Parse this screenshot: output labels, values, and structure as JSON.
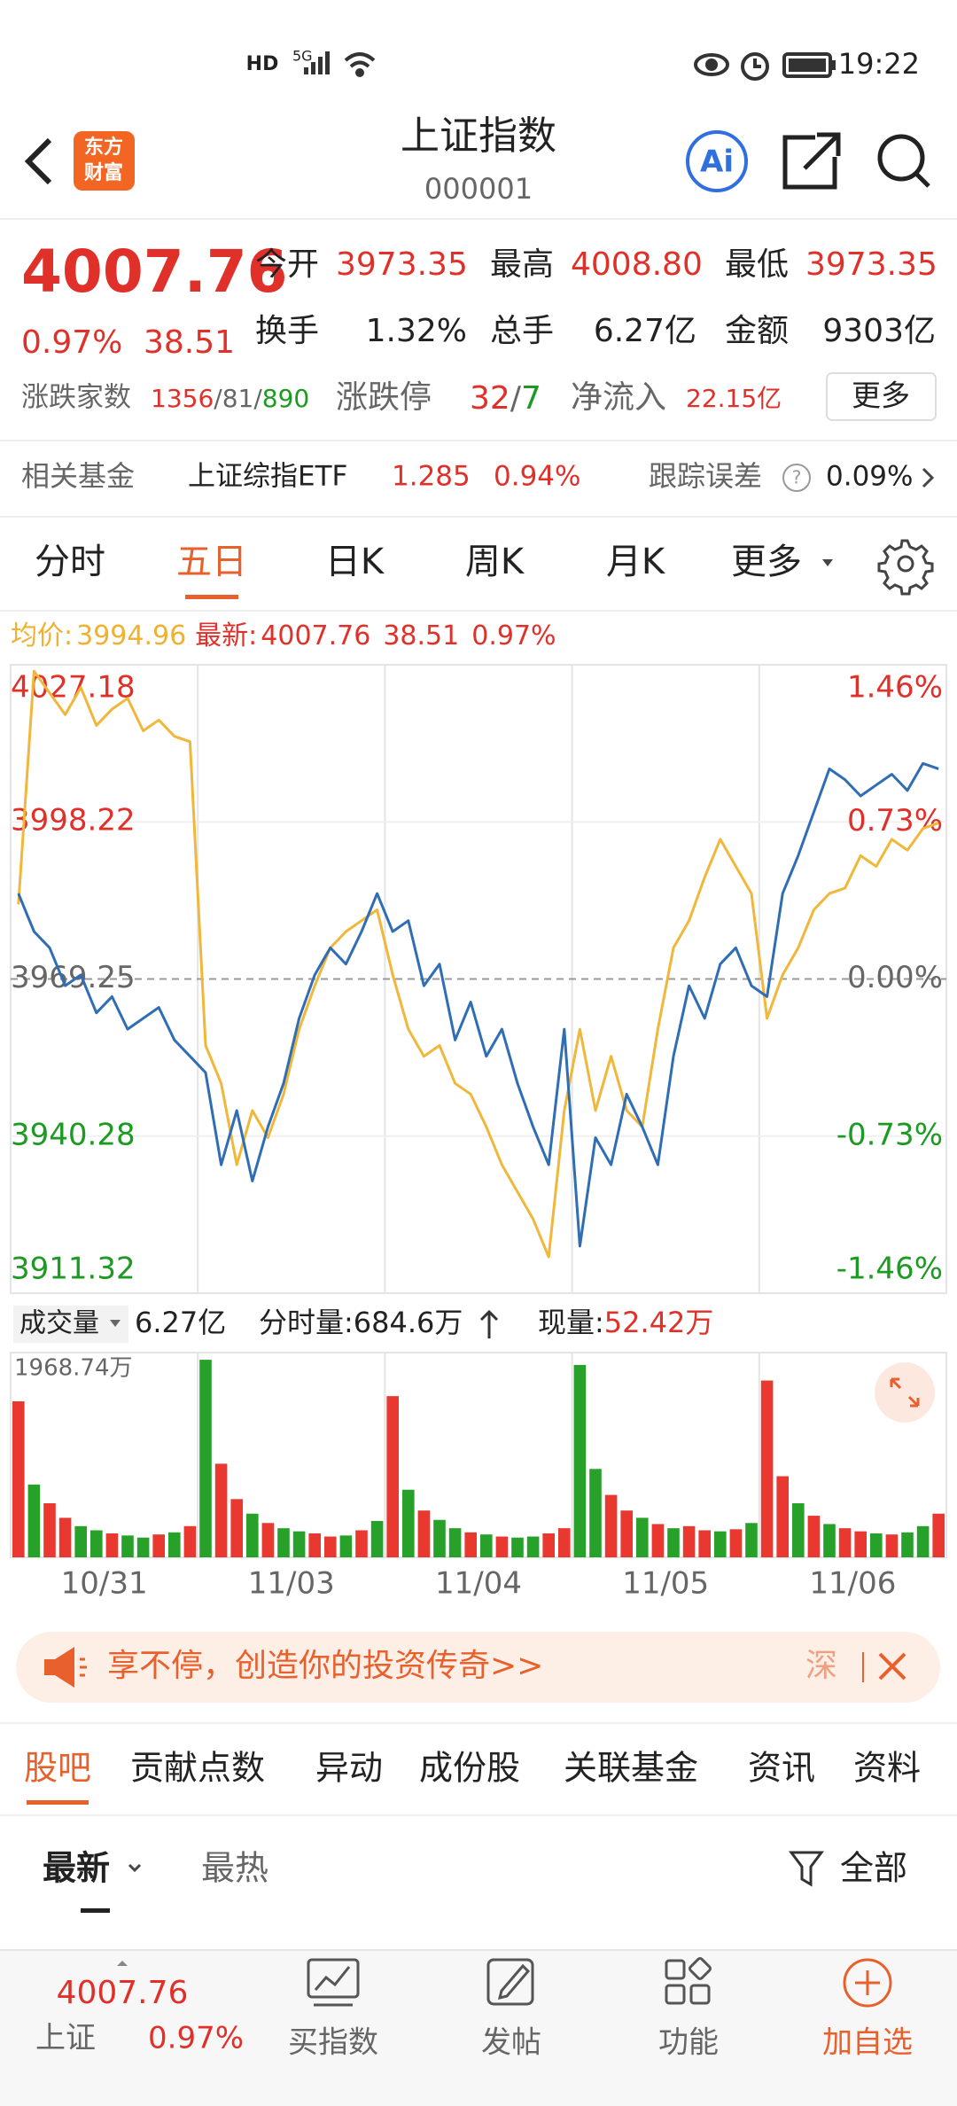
{
  "status_bar": {
    "hd": "HD",
    "net": "5G",
    "time": "19:22"
  },
  "header": {
    "logo": [
      "东方",
      "财富"
    ],
    "title": "上证指数",
    "code": "000001",
    "ai": "Ai"
  },
  "quote": {
    "price": "4007.76",
    "change_pct": "0.97%",
    "change": "38.51",
    "stats": [
      {
        "label": "今开",
        "value": "3973.35"
      },
      {
        "label": "最高",
        "value": "4008.80"
      },
      {
        "label": "最低",
        "value": "3973.35"
      },
      {
        "label": "换手",
        "value": "1.32%"
      },
      {
        "label": "总手",
        "value": "6.27亿"
      },
      {
        "label": "金额",
        "value": "9303亿"
      }
    ],
    "breadth": {
      "label": "涨跌家数",
      "up": "1356",
      "sep": "/",
      "flat": "81",
      "down": "890"
    },
    "limit": {
      "label": "涨跌停",
      "up": "32",
      "sep": "/",
      "down": "7"
    },
    "flow": {
      "label": "净流入",
      "value": "22.15亿"
    },
    "more": "更多"
  },
  "fund": {
    "label": "相关基金",
    "name": "上证综指ETF",
    "price": "1.285",
    "pct": "0.94%",
    "track_label": "跟踪误差",
    "help": "?",
    "track": "0.09%"
  },
  "period_tabs": {
    "items": [
      "分时",
      "五日",
      "日K",
      "周K",
      "月K",
      "更多"
    ],
    "active": 1
  },
  "legend": {
    "avg_label": "均价:",
    "avg": "3994.96",
    "last_label": "最新:",
    "last": "4007.76",
    "change": "38.51",
    "pct": "0.97%"
  },
  "volume_header": {
    "label": "成交量",
    "total": "6.27亿",
    "tick_label": "分时量:684.6万",
    "now_label": "现量:",
    "now": "52.42万"
  },
  "chart_data": [
    {
      "type": "line",
      "days": [
        "10/31",
        "11/03",
        "11/04",
        "11/05",
        "11/06"
      ],
      "ylim": [
        3911.32,
        4027.18
      ],
      "yticks": [
        4027.18,
        3998.22,
        3969.25,
        3940.28,
        3911.32
      ],
      "y2lim": [
        -1.46,
        1.46
      ],
      "y2ticks": [
        {
          "value": 1.46,
          "label": "1.46%"
        },
        {
          "value": 0.73,
          "label": "0.73%"
        },
        {
          "value": 0.0,
          "label": "0.00%"
        },
        {
          "value": -0.73,
          "label": "-0.73%"
        },
        {
          "value": -1.46,
          "label": "-1.46%"
        }
      ],
      "grid": true,
      "series": [
        {
          "name": "最新",
          "color": "#2f6db5",
          "values": [
            3985,
            3978,
            3975,
            3968,
            3970,
            3963,
            3966,
            3960,
            3962,
            3964,
            3958,
            3955,
            3952,
            3935,
            3945,
            3932,
            3942,
            3950,
            3962,
            3970,
            3975,
            3972,
            3978,
            3985,
            3978,
            3980,
            3968,
            3972,
            3958,
            3965,
            3955,
            3960,
            3950,
            3942,
            3935,
            3960,
            3920,
            3940,
            3935,
            3948,
            3942,
            3935,
            3955,
            3968,
            3962,
            3972,
            3975,
            3968,
            3966,
            3985,
            3992,
            4000,
            4008,
            4006,
            4003,
            4005,
            4007,
            4004,
            4009,
            4008
          ]
        },
        {
          "name": "均价",
          "color": "#f0b73a",
          "values": [
            3983,
            4026,
            4022,
            4018,
            4023,
            4016,
            4019,
            4021,
            4015,
            4017,
            4014,
            4013,
            3957,
            3950,
            3935,
            3945,
            3940,
            3948,
            3960,
            3968,
            3975,
            3978,
            3980,
            3982,
            3970,
            3960,
            3955,
            3957,
            3950,
            3948,
            3942,
            3935,
            3930,
            3925,
            3918,
            3945,
            3960,
            3945,
            3955,
            3945,
            3942,
            3960,
            3975,
            3980,
            3988,
            3995,
            3990,
            3985,
            3962,
            3970,
            3975,
            3982,
            3985,
            3986,
            3992,
            3990,
            3995,
            3993,
            3997,
            3998
          ]
        }
      ]
    },
    {
      "type": "bar",
      "ylim": [
        0,
        1968.74
      ],
      "yticks": [
        {
          "value": 1968.74,
          "label": "1968.74万"
        }
      ],
      "values": [
        1500,
        700,
        520,
        380,
        300,
        260,
        230,
        210,
        190,
        220,
        240,
        300,
        1900,
        900,
        560,
        420,
        330,
        280,
        250,
        230,
        200,
        210,
        260,
        350,
        1550,
        650,
        450,
        360,
        280,
        240,
        220,
        200,
        190,
        200,
        230,
        280,
        1850,
        850,
        600,
        450,
        380,
        320,
        280,
        300,
        260,
        250,
        270,
        330,
        1700,
        780,
        520,
        400,
        320,
        280,
        250,
        230,
        220,
        240,
        300,
        420
      ],
      "colors": [
        "#e8382f",
        "#27a12a",
        "#e8382f",
        "#e8382f",
        "#27a12a",
        "#27a12a",
        "#e8382f",
        "#27a12a",
        "#27a12a",
        "#e8382f",
        "#27a12a",
        "#e8382f",
        "#27a12a",
        "#e8382f",
        "#e8382f",
        "#27a12a",
        "#e8382f",
        "#27a12a",
        "#27a12a",
        "#e8382f",
        "#e8382f",
        "#27a12a",
        "#e8382f",
        "#27a12a",
        "#e8382f",
        "#27a12a",
        "#e8382f",
        "#27a12a",
        "#27a12a",
        "#e8382f",
        "#27a12a",
        "#e8382f",
        "#27a12a",
        "#27a12a",
        "#e8382f",
        "#e8382f",
        "#27a12a",
        "#27a12a",
        "#e8382f",
        "#e8382f",
        "#27a12a",
        "#e8382f",
        "#27a12a",
        "#e8382f",
        "#e8382f",
        "#27a12a",
        "#e8382f",
        "#27a12a",
        "#e8382f",
        "#e8382f",
        "#27a12a",
        "#e8382f",
        "#27a12a",
        "#e8382f",
        "#e8382f",
        "#27a12a",
        "#e8382f",
        "#27a12a",
        "#27a12a",
        "#e8382f"
      ]
    }
  ],
  "banner": {
    "text": "享不停，创造你的投资传奇>>",
    "tail": "深"
  },
  "section_tabs": {
    "items": [
      "股吧",
      "贡献点数",
      "异动",
      "成份股",
      "关联基金",
      "资讯",
      "资料"
    ],
    "active": 0
  },
  "sort_tabs": {
    "items": [
      "最新",
      "最热"
    ],
    "filter": "全部"
  },
  "bottom_nav": {
    "price": "4007.76",
    "name": "上证",
    "pct": "0.97%",
    "items": [
      "买指数",
      "发帖",
      "功能",
      "加自选"
    ]
  }
}
